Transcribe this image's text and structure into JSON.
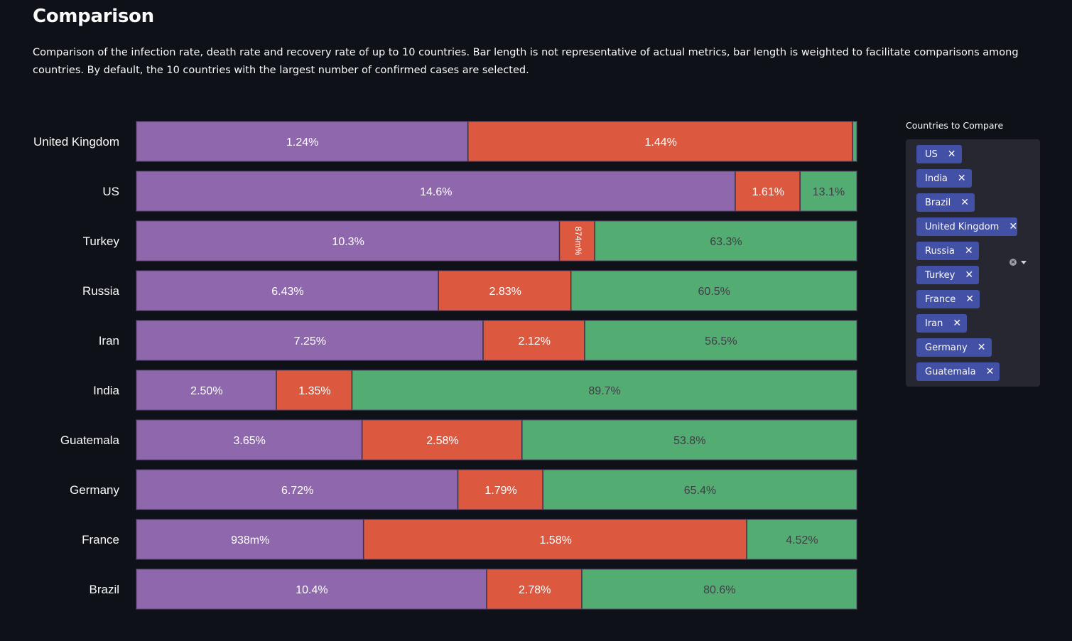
{
  "header": {
    "title": "Comparison",
    "description": "Comparison of the infection rate, death rate and recovery rate of up to 10 countries. Bar length is not representative of actual metrics, bar length is weighted to facilitate comparisons among countries. By default, the 10 countries with the largest number of confirmed cases are selected."
  },
  "colors": {
    "background": "#0e1117",
    "infection": "#8f67ad",
    "death": "#dc5940",
    "recovery": "#53ad72",
    "tag": "#4250a5",
    "panel": "#262730"
  },
  "selector": {
    "label": "Countries to Compare",
    "tags": [
      "US",
      "India",
      "Brazil",
      "United Kingdom",
      "Russia",
      "Turkey",
      "France",
      "Iran",
      "Germany",
      "Guatemala"
    ]
  },
  "chart_data": {
    "type": "bar",
    "orientation": "horizontal",
    "stacked": true,
    "normalized": true,
    "categories": [
      "United Kingdom",
      "US",
      "Turkey",
      "Russia",
      "Iran",
      "India",
      "Guatemala",
      "Germany",
      "France",
      "Brazil"
    ],
    "series": [
      {
        "color": "#8f67ad",
        "values": [
          1.24,
          14.6,
          10.3,
          6.43,
          7.25,
          2.5,
          3.65,
          6.72,
          0.938,
          10.4
        ],
        "labels": [
          "1.24%",
          "14.6%",
          "10.3%",
          "6.43%",
          "7.25%",
          "2.50%",
          "3.65%",
          "6.72%",
          "938m%",
          "10.4%"
        ],
        "shares": [
          0.461,
          0.832,
          0.588,
          0.42,
          0.482,
          0.195,
          0.314,
          0.447,
          0.316,
          0.487
        ]
      },
      {
        "color": "#dc5940",
        "values": [
          1.44,
          1.61,
          0.874,
          2.83,
          2.12,
          1.35,
          2.58,
          1.79,
          1.58,
          2.78
        ],
        "labels": [
          "1.44%",
          "1.61%",
          "874m%",
          "2.83%",
          "2.12%",
          "1.35%",
          "2.58%",
          "1.79%",
          "1.58%",
          "2.78%"
        ],
        "shares": [
          0.534,
          0.09,
          0.049,
          0.184,
          0.141,
          0.105,
          0.222,
          0.118,
          0.532,
          0.132
        ]
      },
      {
        "color": "#53ad72",
        "values": [
          null,
          13.1,
          63.3,
          60.5,
          56.5,
          89.7,
          53.8,
          65.4,
          4.52,
          80.6
        ],
        "labels": [
          "",
          "13.1%",
          "63.3%",
          "60.5%",
          "56.5%",
          "89.7%",
          "53.8%",
          "65.4%",
          "4.52%",
          "80.6%"
        ],
        "shares": [
          0.005,
          0.078,
          0.363,
          0.396,
          0.377,
          0.7,
          0.464,
          0.435,
          0.152,
          0.381
        ]
      }
    ],
    "legend": "none",
    "grid": false
  }
}
